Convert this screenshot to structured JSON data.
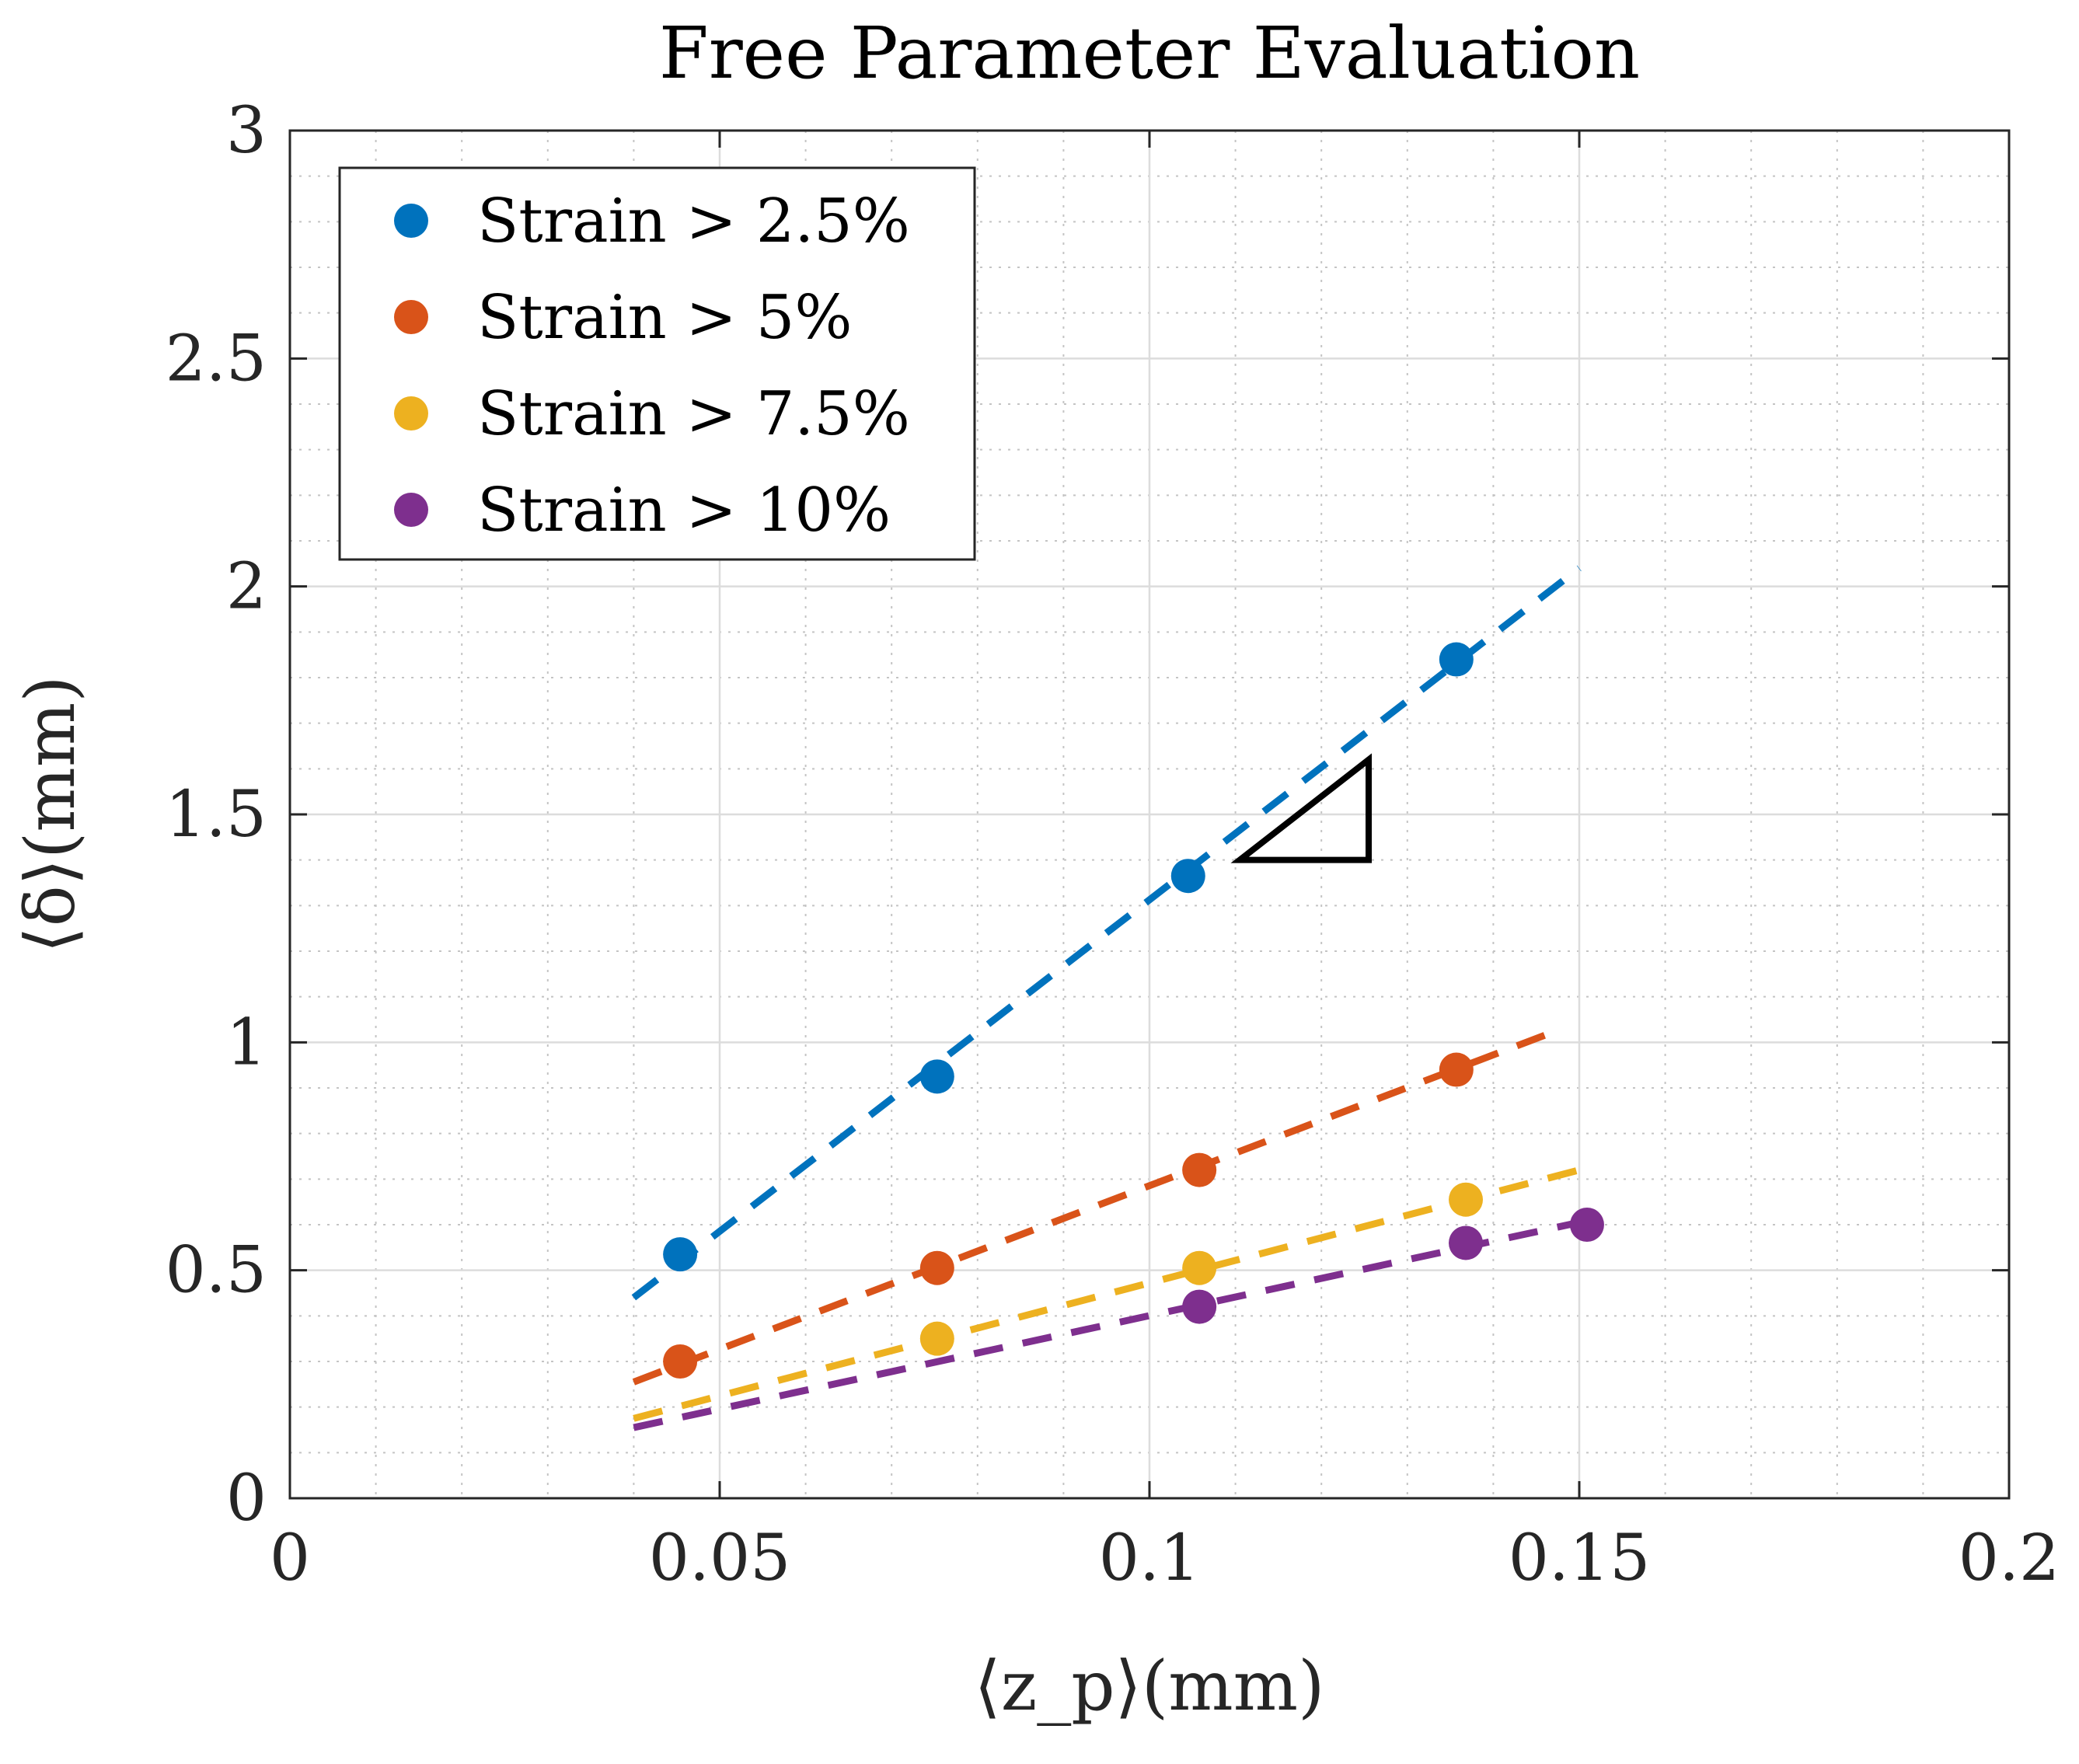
{
  "chart_data": {
    "type": "scatter",
    "title": "Free Parameter Evaluation",
    "xlabel": "⟨z_p⟩(mm)",
    "ylabel": "⟨δ⟩(mm)",
    "xlim": [
      0,
      0.2
    ],
    "ylim": [
      0,
      3
    ],
    "xticks": [
      0,
      0.05,
      0.1,
      0.15,
      0.2
    ],
    "xtick_labels": [
      "0",
      "0.05",
      "0.1",
      "0.15",
      "0.2"
    ],
    "yticks": [
      0,
      0.5,
      1,
      1.5,
      2,
      2.5,
      3
    ],
    "ytick_labels": [
      "0",
      "0.5",
      "1",
      "1.5",
      "2",
      "2.5",
      "3"
    ],
    "grid": true,
    "minor_grid": true,
    "legend_location": "top-left",
    "series": [
      {
        "name": "Strain > 2.5%",
        "color": "#0072BD",
        "points": [
          [
            0.0454,
            0.535
          ],
          [
            0.0753,
            0.925
          ],
          [
            0.1045,
            1.365
          ],
          [
            0.1357,
            1.84
          ]
        ],
        "fit": {
          "x": [
            0.04,
            0.15
          ],
          "y": [
            0.44,
            2.04
          ]
        }
      },
      {
        "name": "Strain > 5%",
        "color": "#D95319",
        "points": [
          [
            0.0454,
            0.3
          ],
          [
            0.0753,
            0.505
          ],
          [
            0.1058,
            0.72
          ],
          [
            0.1357,
            0.94
          ]
        ],
        "fit": {
          "x": [
            0.04,
            0.148
          ],
          "y": [
            0.255,
            1.03
          ]
        }
      },
      {
        "name": "Strain > 7.5%",
        "color": "#EDB120",
        "points": [
          [
            0.0753,
            0.35
          ],
          [
            0.1058,
            0.505
          ],
          [
            0.1368,
            0.655
          ]
        ],
        "fit": {
          "x": [
            0.04,
            0.15
          ],
          "y": [
            0.175,
            0.72
          ]
        }
      },
      {
        "name": "Strain > 10%",
        "color": "#7E2F8E",
        "points": [
          [
            0.1058,
            0.42
          ],
          [
            0.1368,
            0.56
          ],
          [
            0.1509,
            0.6
          ]
        ],
        "fit": {
          "x": [
            0.04,
            0.15
          ],
          "y": [
            0.155,
            0.605
          ]
        }
      }
    ],
    "annotation": {
      "type": "slope-triangle",
      "color": "#000000",
      "x": [
        0.1105,
        0.1255,
        0.1255
      ],
      "y": [
        1.4,
        1.62,
        1.4
      ]
    }
  }
}
